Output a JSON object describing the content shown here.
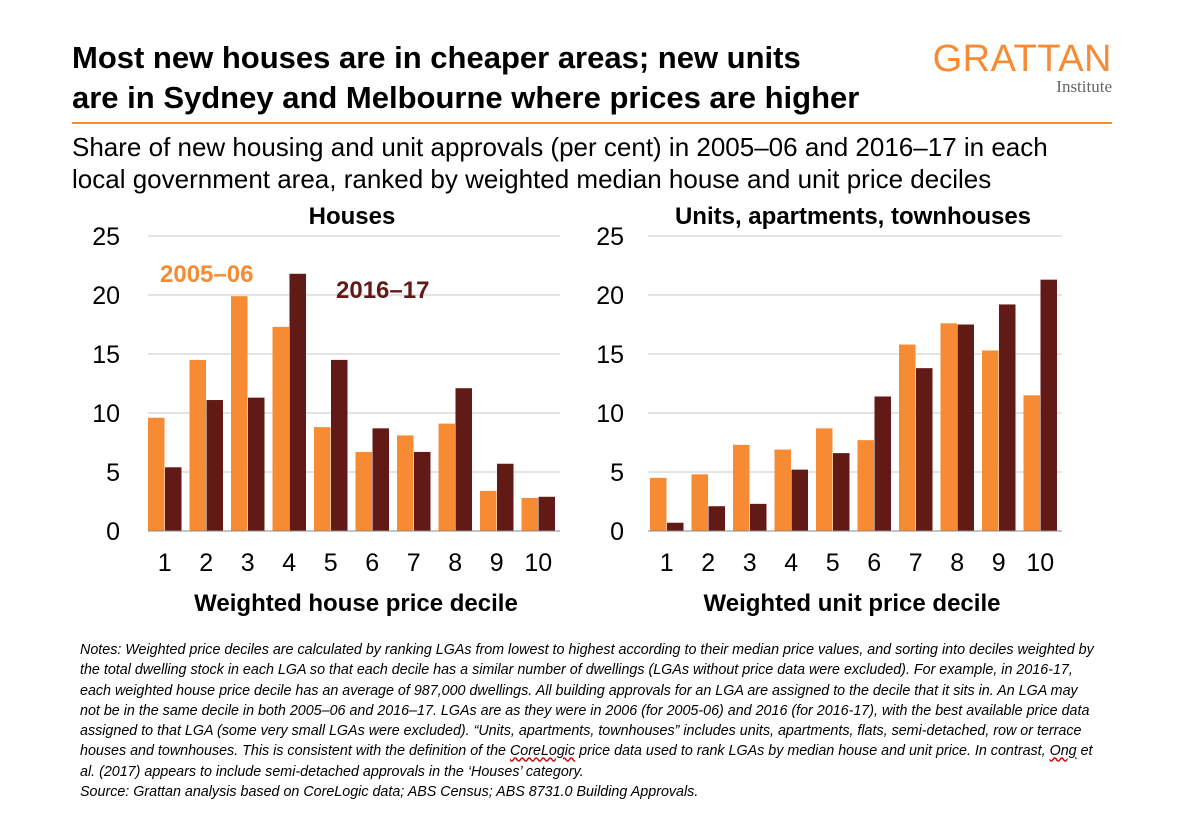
{
  "header": {
    "title_line1": "Most new houses are in cheaper areas; new units",
    "title_line2": "are in Sydney and Melbourne where prices are higher",
    "subtitle_line1": "Share of new housing and unit approvals (per cent) in 2005–06 and 2016–17 in each",
    "subtitle_line2": "local government area, ranked by weighted median house and unit price deciles",
    "logo_main": "GRATTAN",
    "logo_sub": "Institute"
  },
  "colors": {
    "accent": "#f68b33",
    "series_2005": "#f68b33",
    "series_2016": "#621a17",
    "grid": "#c8c8c8"
  },
  "chart_data": [
    {
      "type": "bar",
      "title": "Houses",
      "xlabel": "Weighted house price decile",
      "ylabel": "",
      "ylim": [
        0,
        25
      ],
      "yticks": [
        0,
        5,
        10,
        15,
        20,
        25
      ],
      "grid": true,
      "legend": "in-plot labels",
      "categories": [
        "1",
        "2",
        "3",
        "4",
        "5",
        "6",
        "7",
        "8",
        "9",
        "10"
      ],
      "series": [
        {
          "name": "2005–06",
          "values": [
            9.6,
            14.5,
            19.9,
            17.3,
            8.8,
            6.7,
            8.1,
            9.1,
            3.4,
            2.8
          ]
        },
        {
          "name": "2016–17",
          "values": [
            5.4,
            11.1,
            11.3,
            21.8,
            14.5,
            8.7,
            6.7,
            12.1,
            5.7,
            2.9
          ]
        }
      ]
    },
    {
      "type": "bar",
      "title": "Units, apartments, townhouses",
      "xlabel": "Weighted unit price decile",
      "ylabel": "",
      "ylim": [
        0,
        25
      ],
      "yticks": [
        0,
        5,
        10,
        15,
        20,
        25
      ],
      "grid": true,
      "categories": [
        "1",
        "2",
        "3",
        "4",
        "5",
        "6",
        "7",
        "8",
        "9",
        "10"
      ],
      "series": [
        {
          "name": "2005–06",
          "values": [
            4.5,
            4.8,
            7.3,
            6.9,
            8.7,
            7.7,
            15.8,
            17.6,
            15.3,
            11.5
          ]
        },
        {
          "name": "2016–17",
          "values": [
            0.7,
            2.1,
            2.3,
            5.2,
            6.6,
            11.4,
            13.8,
            17.5,
            19.2,
            21.3
          ]
        }
      ]
    }
  ],
  "notes": {
    "part1": "Notes: Weighted price deciles are calculated by ranking LGAs from lowest to highest according to their median price values, and sorting into deciles weighted by the total dwelling stock in each LGA so that each decile has a similar number of dwellings (LGAs without price data were excluded). For example, in 2016-17, each weighted house price decile has an average of 987,000 dwellings. All building approvals for an LGA are assigned to the decile that it sits in. An LGA may not be in the same decile in both 2005–06 and 2016–17. LGAs are as they were in 2006 (for 2005-06) and 2016 (for 2016-17), with the best available price data assigned to that LGA (some very small LGAs were excluded). “Units, apartments, townhouses” includes units, apartments, flats, semi-detached, row or terrace houses and townhouses. This is consistent with the definition of the ",
    "corelogic": "CoreLogic",
    "part2": " price data used to rank LGAs by median house and unit price. In contrast, ",
    "ong": "Ong",
    "part3": " et al. (2017) appears to include semi-detached approvals in the ‘Houses’ category.",
    "source": "Source: Grattan analysis based on CoreLogic data; ABS Census; ABS 8731.0 Building Approvals."
  }
}
